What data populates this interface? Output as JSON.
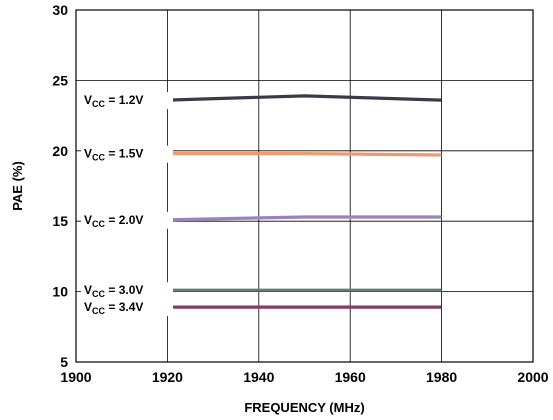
{
  "chart_data": {
    "type": "line",
    "xlabel": "FREQUENCY (MHz)",
    "ylabel": "PAE (%)",
    "xlim": [
      1900,
      2000
    ],
    "ylim": [
      5,
      30
    ],
    "x_ticks": [
      "1900",
      "1920",
      "1940",
      "1960",
      "1980",
      "2000"
    ],
    "y_ticks": [
      "30",
      "25",
      "20",
      "15",
      "10",
      "5"
    ],
    "grid": true,
    "series": [
      {
        "name": "VCC = 1.2V",
        "label_prefix": "V",
        "label_sub": "CC",
        "label_suffix": " = 1.2V",
        "color": "#3a3a4a",
        "x": [
          1920,
          1950,
          1980
        ],
        "y": [
          23.6,
          23.9,
          23.6
        ]
      },
      {
        "name": "VCC = 1.5V",
        "label_prefix": "V",
        "label_sub": "CC",
        "label_suffix": " = 1.5V",
        "color": "#f09a6a",
        "x": [
          1920,
          1950,
          1980
        ],
        "y": [
          19.8,
          19.8,
          19.7
        ]
      },
      {
        "name": "VCC = 2.0V",
        "label_prefix": "V",
        "label_sub": "CC",
        "label_suffix": " = 2.0V",
        "color": "#9a82c2",
        "x": [
          1920,
          1950,
          1980
        ],
        "y": [
          15.1,
          15.3,
          15.3
        ]
      },
      {
        "name": "VCC = 3.0V",
        "label_prefix": "V",
        "label_sub": "CC",
        "label_suffix": " = 3.0V",
        "color": "#5f7f7b",
        "x": [
          1920,
          1950,
          1980
        ],
        "y": [
          10.1,
          10.1,
          10.1
        ]
      },
      {
        "name": "VCC = 3.4V",
        "label_prefix": "V",
        "label_sub": "CC",
        "label_suffix": " = 3.4V",
        "color": "#8a3a62",
        "x": [
          1920,
          1950,
          1980
        ],
        "y": [
          8.9,
          8.9,
          8.9
        ]
      }
    ]
  }
}
